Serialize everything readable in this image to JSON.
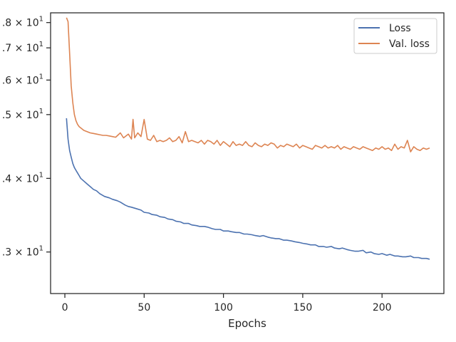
{
  "chart_data": {
    "type": "line",
    "xlabel": "Epochs",
    "ylabel": "",
    "title": "",
    "xlim": [
      -9,
      239
    ],
    "ylim": [
      27.5,
      49.5
    ],
    "y_scale": "log",
    "grid": false,
    "legend_position": "top-right",
    "x_ticks": [
      {
        "value": 0,
        "label": "0"
      },
      {
        "value": 50,
        "label": "50"
      },
      {
        "value": 100,
        "label": "100"
      },
      {
        "value": 150,
        "label": "150"
      },
      {
        "value": 200,
        "label": "200"
      }
    ],
    "y_ticks": [
      {
        "value": 30,
        "label_prefix": ".3",
        "label_suffix": "× 10",
        "label_exp": "1"
      },
      {
        "value": 35,
        "label_prefix": ".4",
        "label_suffix": "× 10",
        "label_exp": "1"
      },
      {
        "value": 40,
        "label_prefix": ".5",
        "label_suffix": "× 10",
        "label_exp": "1"
      },
      {
        "value": 43,
        "label_prefix": ".6",
        "label_suffix": "× 10",
        "label_exp": "1"
      },
      {
        "value": 46,
        "label_prefix": ".7",
        "label_suffix": "× 10",
        "label_exp": "1"
      },
      {
        "value": 48.5,
        "label_prefix": ".8",
        "label_suffix": "× 10",
        "label_exp": "1"
      }
    ],
    "series": [
      {
        "name": "Loss",
        "color": "#4c72b0",
        "x": [
          1,
          2,
          3,
          4,
          5,
          6,
          7,
          8,
          9,
          10,
          12,
          14,
          16,
          18,
          20,
          22,
          25,
          28,
          30,
          33,
          35,
          38,
          40,
          42,
          45,
          48,
          50,
          53,
          55,
          58,
          60,
          63,
          65,
          68,
          70,
          73,
          75,
          78,
          80,
          83,
          85,
          88,
          90,
          93,
          95,
          98,
          100,
          103,
          105,
          108,
          110,
          113,
          115,
          118,
          120,
          123,
          125,
          128,
          130,
          133,
          135,
          138,
          140,
          143,
          145,
          148,
          150,
          153,
          155,
          158,
          160,
          163,
          165,
          168,
          170,
          173,
          175,
          178,
          180,
          183,
          185,
          188,
          190,
          193,
          195,
          198,
          200,
          203,
          205,
          208,
          210,
          213,
          215,
          218,
          220,
          223,
          225,
          228,
          230
        ],
        "y": [
          39.7,
          38.0,
          37.1,
          36.6,
          36.1,
          35.8,
          35.6,
          35.4,
          35.2,
          35.0,
          34.8,
          34.6,
          34.4,
          34.2,
          34.1,
          33.9,
          33.7,
          33.6,
          33.5,
          33.4,
          33.3,
          33.1,
          33.0,
          32.95,
          32.85,
          32.75,
          32.6,
          32.55,
          32.45,
          32.4,
          32.3,
          32.25,
          32.15,
          32.1,
          32.0,
          31.95,
          31.85,
          31.85,
          31.75,
          31.7,
          31.65,
          31.65,
          31.6,
          31.5,
          31.45,
          31.45,
          31.35,
          31.35,
          31.3,
          31.25,
          31.25,
          31.15,
          31.15,
          31.1,
          31.05,
          31.0,
          31.05,
          30.95,
          30.9,
          30.85,
          30.85,
          30.75,
          30.75,
          30.7,
          30.65,
          30.6,
          30.55,
          30.5,
          30.45,
          30.45,
          30.35,
          30.35,
          30.3,
          30.35,
          30.25,
          30.2,
          30.25,
          30.15,
          30.1,
          30.05,
          30.05,
          30.1,
          29.95,
          30.0,
          29.9,
          29.85,
          29.9,
          29.8,
          29.85,
          29.75,
          29.75,
          29.7,
          29.7,
          29.75,
          29.65,
          29.65,
          29.6,
          29.6,
          29.55
        ]
      },
      {
        "name": "Val. loss",
        "color": "#dd8452",
        "x": [
          1,
          2,
          3,
          4,
          5,
          6,
          7,
          8,
          9,
          10,
          12,
          14,
          16,
          18,
          20,
          22,
          24,
          26,
          28,
          30,
          32,
          35,
          37,
          40,
          42,
          43,
          44,
          46,
          48,
          50,
          52,
          54,
          56,
          58,
          60,
          62,
          64,
          66,
          68,
          70,
          72,
          74,
          76,
          78,
          80,
          82,
          84,
          86,
          88,
          90,
          92,
          94,
          96,
          98,
          100,
          102,
          104,
          106,
          108,
          110,
          112,
          114,
          116,
          118,
          120,
          122,
          124,
          126,
          128,
          130,
          132,
          134,
          136,
          138,
          140,
          142,
          144,
          146,
          148,
          150,
          152,
          154,
          156,
          158,
          160,
          162,
          164,
          166,
          168,
          170,
          172,
          174,
          176,
          178,
          180,
          182,
          184,
          186,
          188,
          190,
          192,
          194,
          196,
          198,
          200,
          202,
          204,
          206,
          208,
          210,
          212,
          214,
          216,
          218,
          220,
          222,
          224,
          226,
          228,
          230
        ],
        "y": [
          49.0,
          48.6,
          45.5,
          42.5,
          41.0,
          40.0,
          39.5,
          39.2,
          39.0,
          38.9,
          38.7,
          38.6,
          38.5,
          38.45,
          38.4,
          38.35,
          38.3,
          38.3,
          38.25,
          38.2,
          38.15,
          38.5,
          38.1,
          38.4,
          38.0,
          39.6,
          38.1,
          38.5,
          38.2,
          39.6,
          38.0,
          37.9,
          38.3,
          37.8,
          37.9,
          37.8,
          37.9,
          38.1,
          37.8,
          37.9,
          38.2,
          37.7,
          38.6,
          37.8,
          37.9,
          37.8,
          37.7,
          37.9,
          37.6,
          37.9,
          37.8,
          37.6,
          37.9,
          37.5,
          37.8,
          37.6,
          37.4,
          37.8,
          37.5,
          37.6,
          37.5,
          37.8,
          37.5,
          37.4,
          37.7,
          37.5,
          37.4,
          37.6,
          37.5,
          37.7,
          37.6,
          37.3,
          37.5,
          37.4,
          37.6,
          37.5,
          37.4,
          37.6,
          37.3,
          37.5,
          37.4,
          37.3,
          37.2,
          37.5,
          37.4,
          37.3,
          37.5,
          37.3,
          37.4,
          37.3,
          37.5,
          37.2,
          37.4,
          37.3,
          37.2,
          37.4,
          37.3,
          37.2,
          37.4,
          37.3,
          37.2,
          37.1,
          37.3,
          37.2,
          37.4,
          37.2,
          37.3,
          37.1,
          37.6,
          37.2,
          37.4,
          37.3,
          37.9,
          37.0,
          37.4,
          37.2,
          37.1,
          37.3,
          37.2,
          37.3
        ]
      }
    ]
  }
}
